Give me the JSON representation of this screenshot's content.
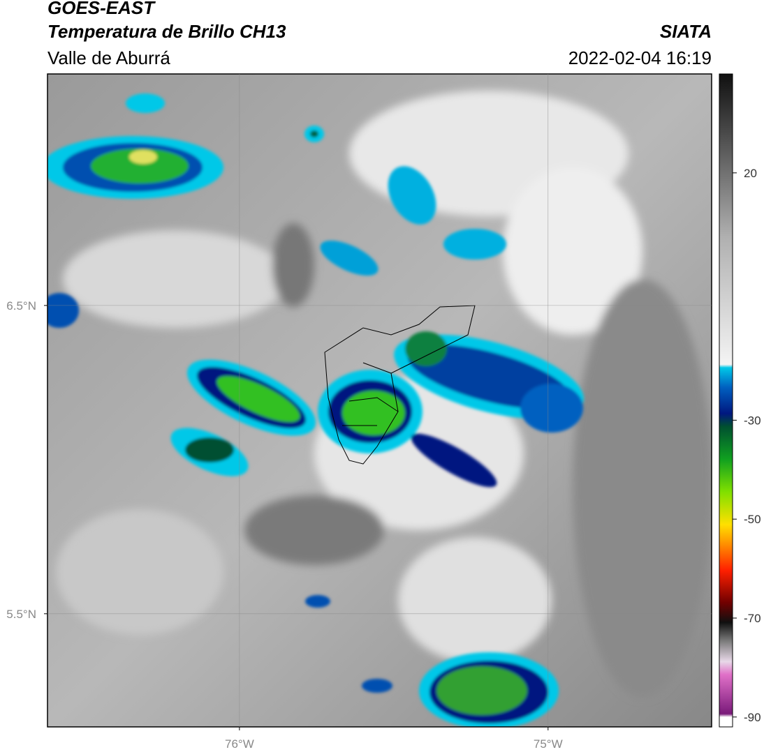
{
  "header": {
    "title": "GOES-EAST",
    "subtitle": "Temperatura de Brillo CH13",
    "region": "Valle de Aburrá",
    "source": "SIATA",
    "datetime": "2022-02-04 16:19"
  },
  "map": {
    "xlim": [
      -76.622,
      -74.47
    ],
    "ylim": [
      5.133,
      7.251
    ],
    "xticks": [
      {
        "value": -76,
        "label": "76°W"
      },
      {
        "value": -75,
        "label": "75°W"
      }
    ],
    "yticks": [
      {
        "value": 6.5,
        "label": "6.5°N"
      },
      {
        "value": 5.5,
        "label": "5.5°N"
      }
    ],
    "grid": true
  },
  "colorbar": {
    "lim": [
      -92,
      40
    ],
    "ticks": [
      20,
      -30,
      -50,
      -70,
      -90
    ]
  }
}
